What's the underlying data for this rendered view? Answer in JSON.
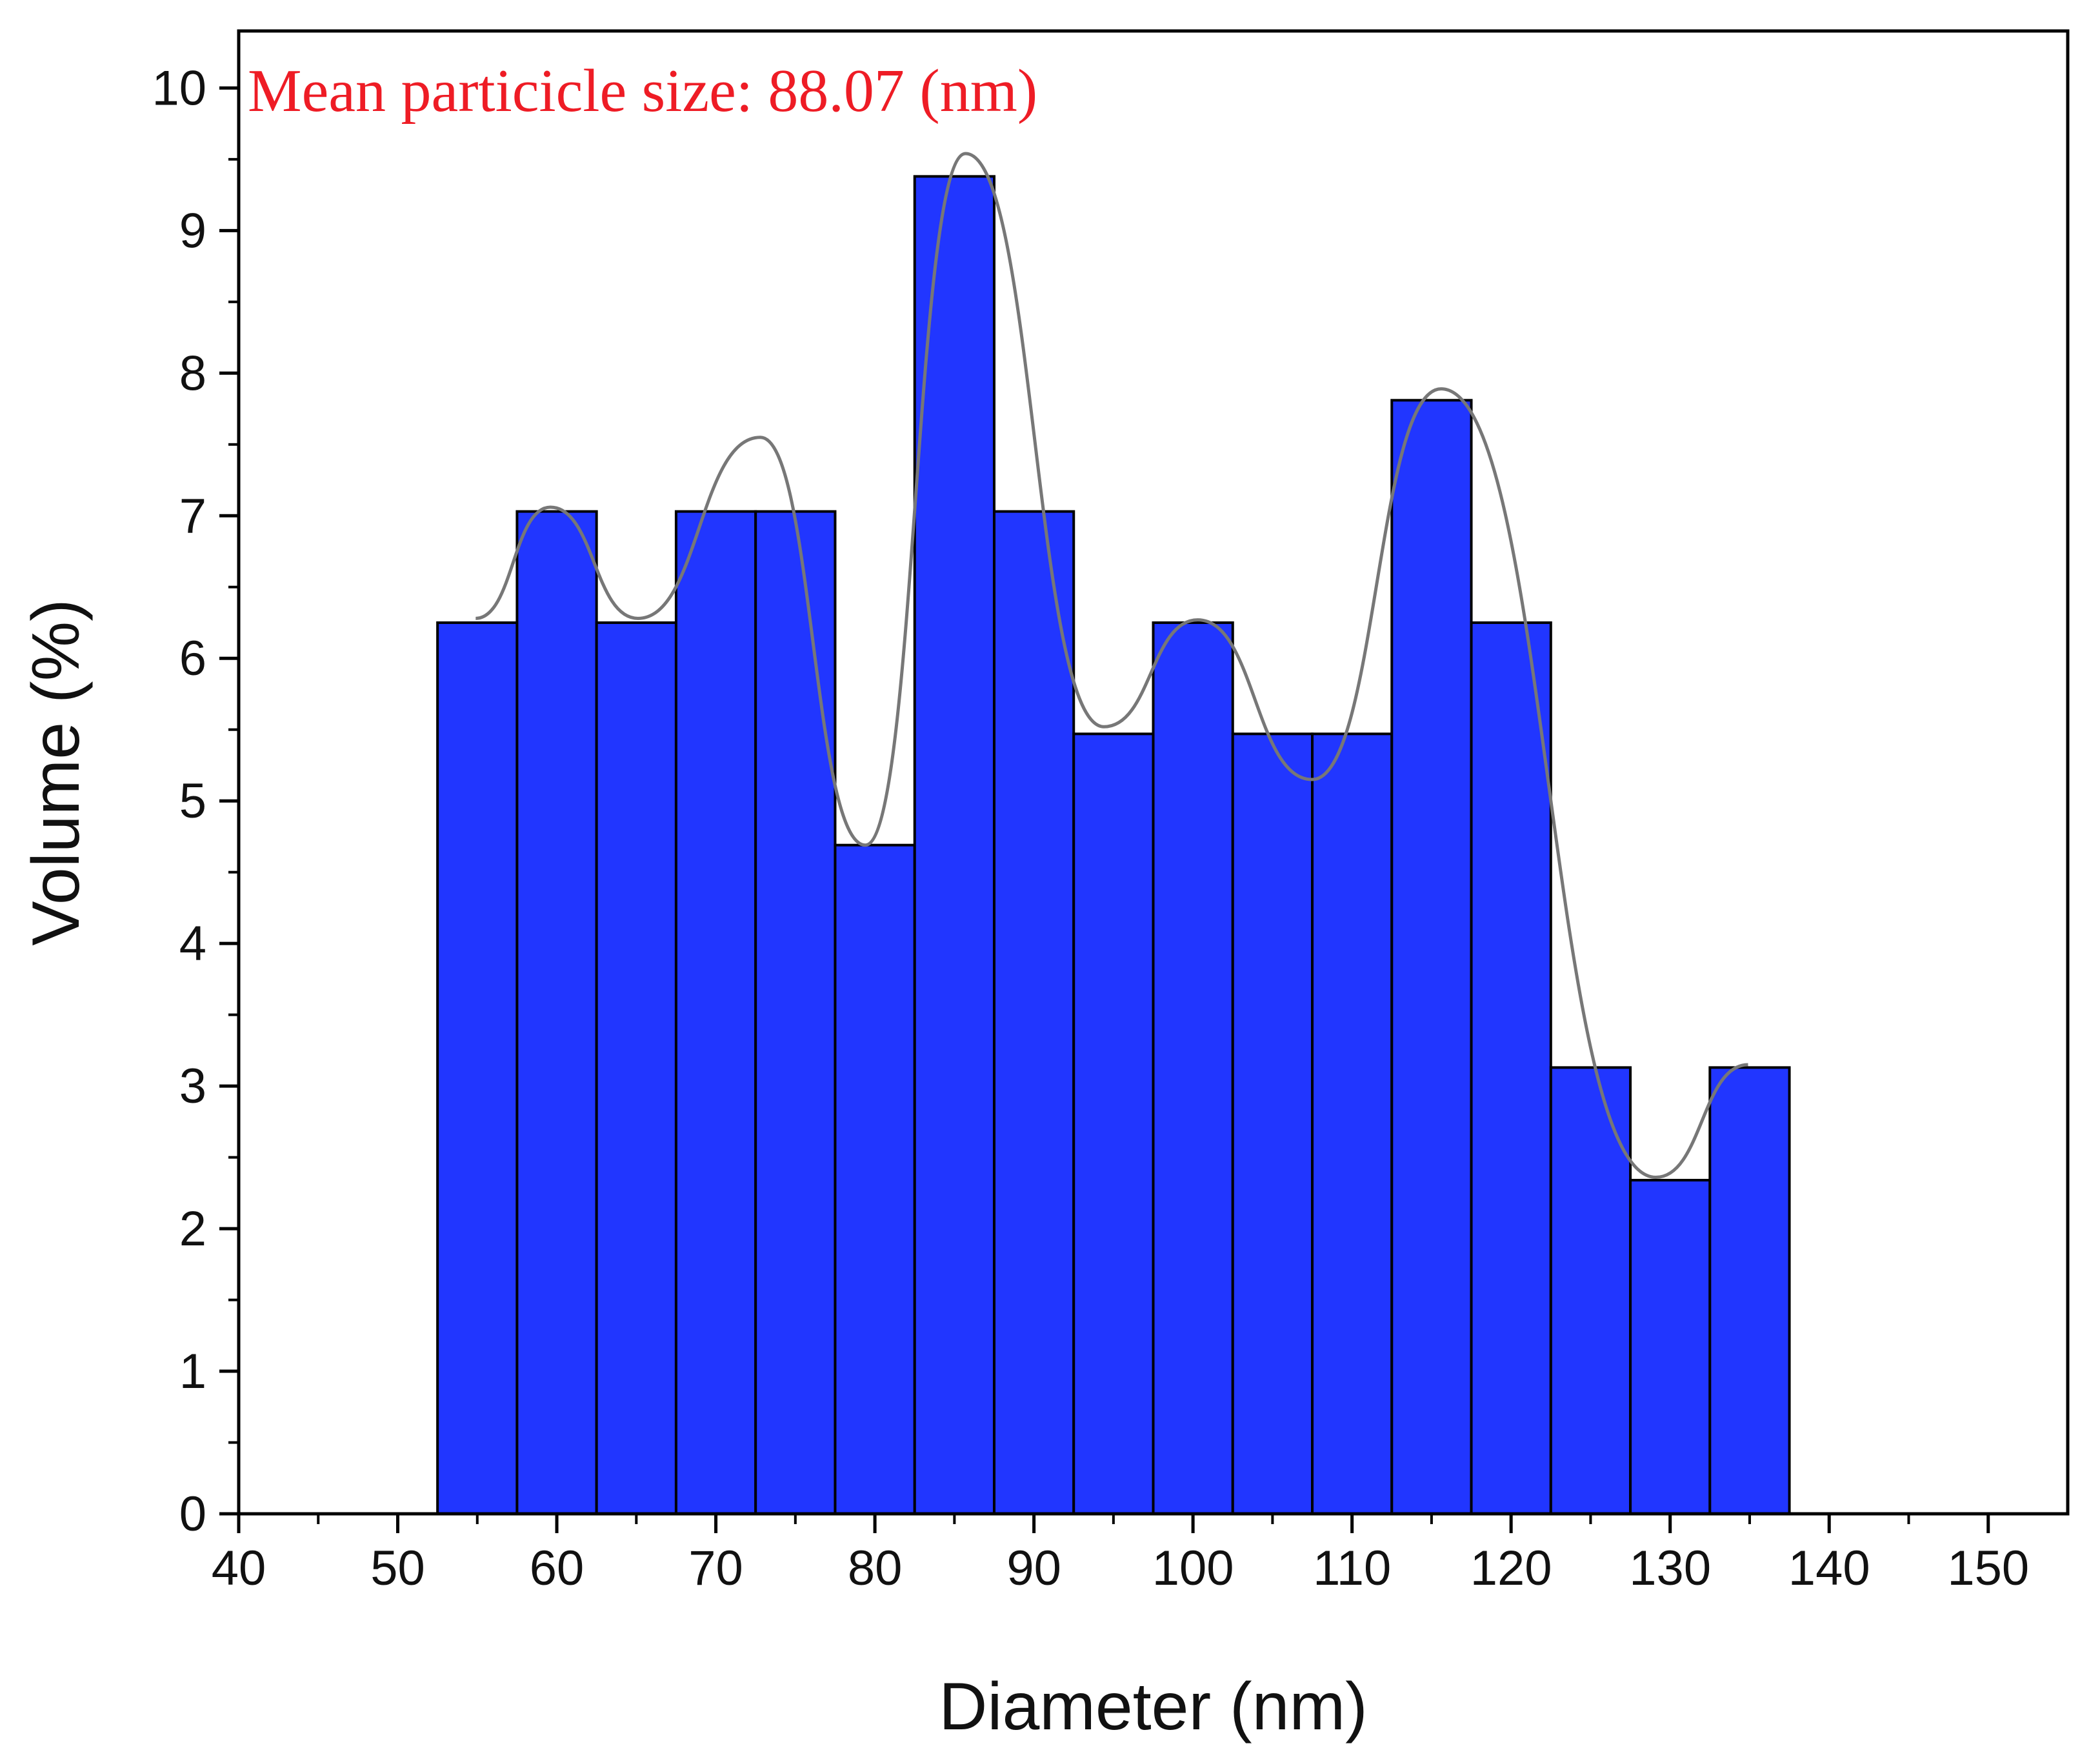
{
  "chart_data": {
    "type": "bar",
    "subtype": "histogram",
    "annotation": "Mean particicle size: 88.07 (nm)",
    "xlabel": "Diameter (nm)",
    "ylabel": "Volume (%)",
    "xlim": [
      40,
      155
    ],
    "ylim": [
      0,
      10.4
    ],
    "xticks": [
      40,
      50,
      60,
      70,
      80,
      90,
      100,
      110,
      120,
      130,
      140,
      150
    ],
    "yticks": [
      0,
      1,
      2,
      3,
      4,
      5,
      6,
      7,
      8,
      9,
      10
    ],
    "bin_width": 5,
    "bins": [
      {
        "center": 55,
        "value": 6.25
      },
      {
        "center": 60,
        "value": 7.03
      },
      {
        "center": 65,
        "value": 6.25
      },
      {
        "center": 70,
        "value": 7.03
      },
      {
        "center": 75,
        "value": 7.03
      },
      {
        "center": 80,
        "value": 4.69
      },
      {
        "center": 85,
        "value": 9.38
      },
      {
        "center": 90,
        "value": 7.03
      },
      {
        "center": 95,
        "value": 5.47
      },
      {
        "center": 100,
        "value": 6.25
      },
      {
        "center": 105,
        "value": 5.47
      },
      {
        "center": 110,
        "value": 5.47
      },
      {
        "center": 115,
        "value": 7.81
      },
      {
        "center": 120,
        "value": 6.25
      },
      {
        "center": 125,
        "value": 3.13
      },
      {
        "center": 130,
        "value": 2.34
      },
      {
        "center": 135,
        "value": 3.13
      }
    ],
    "fit_curve": {
      "x": [
        54.9,
        59.6,
        65.1,
        72.8,
        79.4,
        85.7,
        94.4,
        100.3,
        107.5,
        115.6,
        129.1,
        134.9
      ],
      "y": [
        6.28,
        7.06,
        6.28,
        7.55,
        4.69,
        9.54,
        5.52,
        6.27,
        5.15,
        7.89,
        2.36,
        3.15
      ]
    },
    "colors": {
      "bar_fill": "#2136ff",
      "bar_edge": "#000000",
      "fit_line": "#777777",
      "annotation": "#ee1c25"
    },
    "grid": false,
    "legend": "none"
  }
}
